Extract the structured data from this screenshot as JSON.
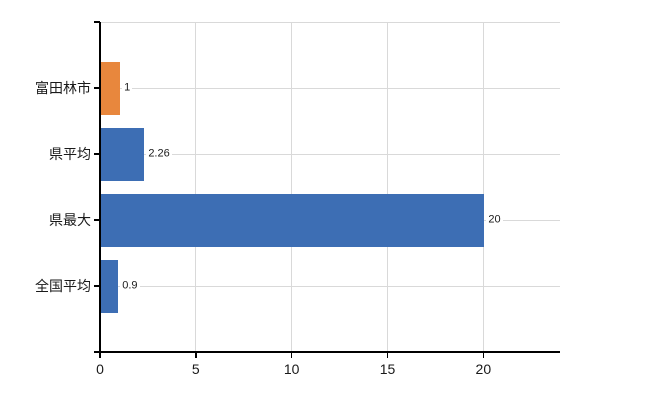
{
  "chart_data": {
    "type": "bar",
    "orientation": "horizontal",
    "categories": [
      "富田林市",
      "県平均",
      "県最大",
      "全国平均"
    ],
    "values": [
      1,
      2.26,
      20,
      0.9
    ],
    "value_labels": [
      "1",
      "2.26",
      "20",
      "0.9"
    ],
    "bar_colors": [
      "#E8873D",
      "#3D6EB4",
      "#3D6EB4",
      "#3D6EB4"
    ],
    "x_ticks": [
      0,
      5,
      10,
      15,
      20
    ],
    "x_tick_labels": [
      "0",
      "5",
      "10",
      "15",
      "20"
    ],
    "xlim": [
      0,
      24
    ],
    "grid": true,
    "legend": "none",
    "colors": {
      "grid": "#D9D9D9",
      "axis": "#000000",
      "text": "#1A1A1A",
      "background": "#FFFFFF"
    }
  }
}
